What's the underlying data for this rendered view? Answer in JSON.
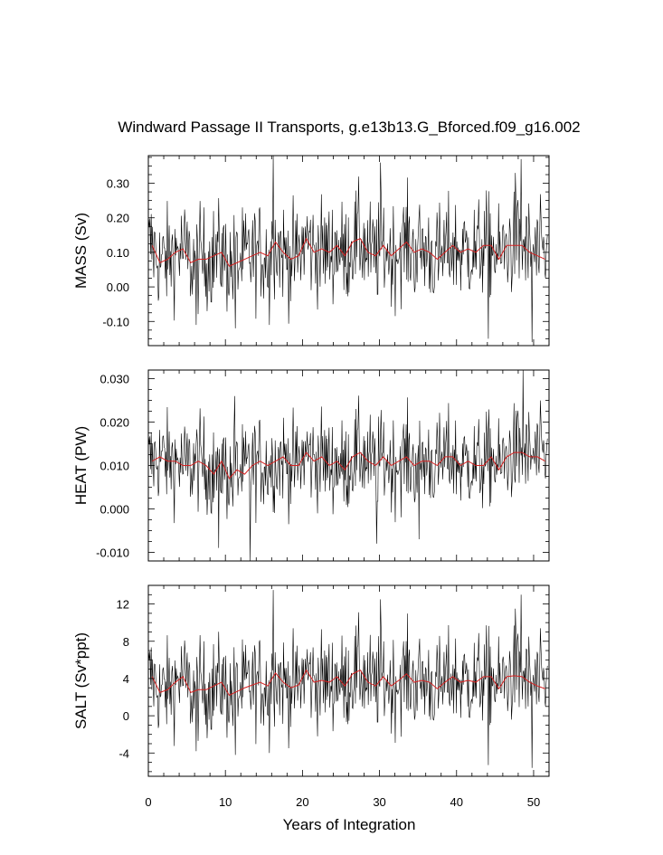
{
  "chart_data": {
    "type": "line",
    "title": "Windward Passage II Transports, g.e13b13.G_Bforced.f09_g16.002",
    "xlabel": "Years of Integration",
    "xlim": [
      0,
      52
    ],
    "x_ticks": [
      0,
      10,
      20,
      30,
      40,
      50
    ],
    "x_tick_labels": [
      "0",
      "10",
      "20",
      "30",
      "40",
      "50"
    ],
    "series_colors": {
      "monthly": "#000000",
      "annual": "#d62020"
    },
    "panels": [
      {
        "id": "mass",
        "ylabel": "MASS (Sv)",
        "ylim": [
          -0.17,
          0.38
        ],
        "y_ticks": [
          -0.1,
          0.0,
          0.1,
          0.2,
          0.3
        ],
        "y_tick_labels": [
          "-0.10",
          "0.00",
          "0.10",
          "0.20",
          "0.30"
        ],
        "monthly_mean": 0.095,
        "monthly_amplitude": 0.075,
        "annual_x": [
          0.5,
          1.5,
          2.5,
          3.5,
          4.5,
          5.5,
          6.5,
          7.5,
          8.5,
          9.5,
          10.5,
          11.5,
          12.5,
          13.5,
          14.5,
          15.5,
          16.5,
          17.5,
          18.5,
          19.5,
          20.5,
          21.5,
          22.5,
          23.5,
          24.5,
          25.5,
          26.5,
          27.5,
          28.5,
          29.5,
          30.5,
          31.5,
          32.5,
          33.5,
          34.5,
          35.5,
          36.5,
          37.5,
          38.5,
          39.5,
          40.5,
          41.5,
          42.5,
          43.5,
          44.5,
          45.5,
          46.5,
          47.5,
          48.5,
          49.5,
          50.5,
          51.5
        ],
        "annual": [
          0.12,
          0.07,
          0.08,
          0.1,
          0.11,
          0.07,
          0.08,
          0.08,
          0.09,
          0.1,
          0.06,
          0.07,
          0.08,
          0.09,
          0.1,
          0.09,
          0.13,
          0.1,
          0.08,
          0.09,
          0.14,
          0.1,
          0.11,
          0.1,
          0.12,
          0.09,
          0.13,
          0.14,
          0.1,
          0.09,
          0.12,
          0.09,
          0.11,
          0.13,
          0.1,
          0.11,
          0.1,
          0.08,
          0.1,
          0.12,
          0.1,
          0.11,
          0.1,
          0.12,
          0.12,
          0.08,
          0.12,
          0.12,
          0.12,
          0.1,
          0.09,
          0.08
        ],
        "extremes": [
          [
            16.2,
            0.38
          ],
          [
            30.1,
            0.36
          ],
          [
            48.4,
            0.37
          ],
          [
            47.6,
            0.33
          ],
          [
            44.1,
            -0.15
          ],
          [
            49.8,
            -0.16
          ],
          [
            11.3,
            -0.12
          ],
          [
            15.7,
            -0.11
          ],
          [
            6.2,
            -0.11
          ]
        ]
      },
      {
        "id": "heat",
        "ylabel": "HEAT (PW)",
        "ylim": [
          -0.012,
          0.032
        ],
        "y_ticks": [
          -0.01,
          0.0,
          0.01,
          0.02,
          0.03
        ],
        "y_tick_labels": [
          "-0.010",
          "0.000",
          "0.010",
          "0.020",
          "0.030"
        ],
        "monthly_mean": 0.0105,
        "monthly_amplitude": 0.0055,
        "annual_x": [
          0.5,
          1.5,
          2.5,
          3.5,
          4.5,
          5.5,
          6.5,
          7.5,
          8.5,
          9.5,
          10.5,
          11.5,
          12.5,
          13.5,
          14.5,
          15.5,
          16.5,
          17.5,
          18.5,
          19.5,
          20.5,
          21.5,
          22.5,
          23.5,
          24.5,
          25.5,
          26.5,
          27.5,
          28.5,
          29.5,
          30.5,
          31.5,
          32.5,
          33.5,
          34.5,
          35.5,
          36.5,
          37.5,
          38.5,
          39.5,
          40.5,
          41.5,
          42.5,
          43.5,
          44.5,
          45.5,
          46.5,
          47.5,
          48.5,
          49.5,
          50.5,
          51.5
        ],
        "annual": [
          0.011,
          0.012,
          0.011,
          0.011,
          0.01,
          0.01,
          0.011,
          0.01,
          0.008,
          0.011,
          0.007,
          0.009,
          0.008,
          0.01,
          0.011,
          0.01,
          0.011,
          0.012,
          0.01,
          0.01,
          0.013,
          0.011,
          0.012,
          0.01,
          0.011,
          0.009,
          0.012,
          0.013,
          0.011,
          0.01,
          0.012,
          0.01,
          0.011,
          0.012,
          0.01,
          0.011,
          0.011,
          0.01,
          0.012,
          0.012,
          0.01,
          0.011,
          0.01,
          0.01,
          0.012,
          0.009,
          0.012,
          0.013,
          0.013,
          0.012,
          0.012,
          0.011
        ],
        "extremes": [
          [
            48.6,
            0.032
          ],
          [
            11.2,
            0.026
          ],
          [
            13.2,
            -0.012
          ],
          [
            9.1,
            -0.009
          ],
          [
            29.6,
            -0.008
          ],
          [
            35.1,
            -0.007
          ]
        ]
      },
      {
        "id": "salt",
        "ylabel": "SALT (Sv*ppt)",
        "ylim": [
          -6.5,
          14
        ],
        "y_ticks": [
          -4,
          0,
          4,
          8,
          12
        ],
        "y_tick_labels": [
          "-4",
          "0",
          "4",
          "8",
          "12"
        ],
        "monthly_mean": 3.3,
        "monthly_amplitude": 2.6,
        "annual_x": [
          0.5,
          1.5,
          2.5,
          3.5,
          4.5,
          5.5,
          6.5,
          7.5,
          8.5,
          9.5,
          10.5,
          11.5,
          12.5,
          13.5,
          14.5,
          15.5,
          16.5,
          17.5,
          18.5,
          19.5,
          20.5,
          21.5,
          22.5,
          23.5,
          24.5,
          25.5,
          26.5,
          27.5,
          28.5,
          29.5,
          30.5,
          31.5,
          32.5,
          33.5,
          34.5,
          35.5,
          36.5,
          37.5,
          38.5,
          39.5,
          40.5,
          41.5,
          42.5,
          43.5,
          44.5,
          45.5,
          46.5,
          47.5,
          48.5,
          49.5,
          50.5,
          51.5
        ],
        "annual": [
          4.2,
          2.5,
          2.8,
          3.6,
          4.2,
          2.5,
          2.8,
          2.8,
          3.2,
          3.6,
          2.2,
          2.6,
          3.0,
          3.3,
          3.6,
          3.2,
          4.6,
          3.6,
          3.0,
          3.3,
          4.9,
          3.6,
          3.8,
          3.6,
          4.2,
          3.2,
          4.5,
          4.9,
          3.6,
          3.2,
          4.2,
          3.2,
          3.8,
          4.5,
          3.6,
          3.8,
          3.6,
          2.9,
          3.6,
          4.2,
          3.6,
          3.8,
          3.6,
          4.2,
          4.2,
          2.9,
          4.2,
          4.3,
          4.2,
          3.6,
          3.2,
          2.9
        ],
        "extremes": [
          [
            16.2,
            13.5
          ],
          [
            30.1,
            12.5
          ],
          [
            48.4,
            13.0
          ],
          [
            47.6,
            11.5
          ],
          [
            44.1,
            -5.3
          ],
          [
            49.8,
            -5.6
          ],
          [
            11.3,
            -4.2
          ],
          [
            15.7,
            -4.0
          ],
          [
            6.2,
            -3.8
          ]
        ]
      }
    ]
  }
}
